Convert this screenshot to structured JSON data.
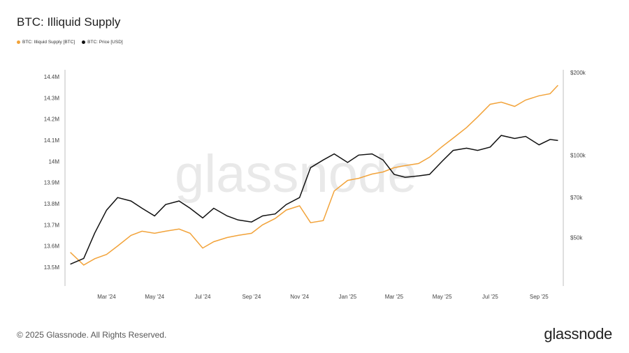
{
  "title": "BTC: Illiquid Supply",
  "legend": [
    {
      "label": "BTC: Illiquid Supply [BTC]",
      "color": "#f2a33a"
    },
    {
      "label": "BTC: Price [USD]",
      "color": "#111111"
    }
  ],
  "watermark": "glassnode",
  "footer": {
    "copyright": "© 2025 Glassnode. All Rights Reserved.",
    "logo": "glassnode"
  },
  "chart_data": {
    "type": "line",
    "x_axis": {
      "ticks": [
        "Mar '24",
        "May '24",
        "Jul '24",
        "Sep '24",
        "Nov '24",
        "Jan '25",
        "Mar '25",
        "May '25",
        "Jul '25",
        "Sep '25"
      ]
    },
    "y_left": {
      "ticks": [
        "13.5M",
        "13.6M",
        "13.7M",
        "13.8M",
        "13.9M",
        "14M",
        "14.1M",
        "14.2M",
        "14.3M",
        "14.4M"
      ],
      "range": [
        13.47,
        14.42
      ]
    },
    "y_right": {
      "ticks": [
        "$50k",
        "$70k",
        "$100k",
        "$200k"
      ],
      "scale": "log",
      "range": [
        37000,
        200000
      ]
    },
    "grid": false,
    "legend_position": "top-left",
    "series": [
      {
        "name": "BTC: Illiquid Supply [BTC]",
        "axis": "left",
        "color": "#f2a33a",
        "x": [
          "2024-01-15",
          "2024-02-01",
          "2024-02-15",
          "2024-03-01",
          "2024-03-15",
          "2024-04-01",
          "2024-04-15",
          "2024-05-01",
          "2024-05-15",
          "2024-06-01",
          "2024-06-15",
          "2024-07-01",
          "2024-07-15",
          "2024-08-01",
          "2024-08-15",
          "2024-09-01",
          "2024-09-15",
          "2024-10-01",
          "2024-10-15",
          "2024-11-01",
          "2024-11-15",
          "2024-12-01",
          "2024-12-15",
          "2025-01-01",
          "2025-01-15",
          "2025-02-01",
          "2025-02-15",
          "2025-03-01",
          "2025-03-15",
          "2025-04-01",
          "2025-04-15",
          "2025-05-01",
          "2025-05-15",
          "2025-06-01",
          "2025-06-15",
          "2025-07-01",
          "2025-07-15",
          "2025-08-01",
          "2025-08-15",
          "2025-09-01",
          "2025-09-15",
          "2025-09-25"
        ],
        "values": [
          13.57,
          13.51,
          13.54,
          13.56,
          13.6,
          13.65,
          13.67,
          13.66,
          13.67,
          13.68,
          13.66,
          13.59,
          13.62,
          13.64,
          13.65,
          13.66,
          13.7,
          13.73,
          13.77,
          13.79,
          13.71,
          13.72,
          13.86,
          13.91,
          13.92,
          13.94,
          13.95,
          13.97,
          13.98,
          13.99,
          14.02,
          14.07,
          14.11,
          14.16,
          14.21,
          14.27,
          14.28,
          14.26,
          14.29,
          14.31,
          14.32,
          14.36
        ]
      },
      {
        "name": "BTC: Price [USD]",
        "axis": "right",
        "color": "#111111",
        "x": [
          "2024-01-15",
          "2024-02-01",
          "2024-02-15",
          "2024-03-01",
          "2024-03-15",
          "2024-04-01",
          "2024-04-15",
          "2024-05-01",
          "2024-05-15",
          "2024-06-01",
          "2024-06-15",
          "2024-07-01",
          "2024-07-15",
          "2024-08-01",
          "2024-08-15",
          "2024-09-01",
          "2024-09-15",
          "2024-10-01",
          "2024-10-15",
          "2024-11-01",
          "2024-11-15",
          "2024-12-01",
          "2024-12-15",
          "2025-01-01",
          "2025-01-15",
          "2025-02-01",
          "2025-02-15",
          "2025-03-01",
          "2025-03-15",
          "2025-04-01",
          "2025-04-15",
          "2025-05-01",
          "2025-05-15",
          "2025-06-01",
          "2025-06-15",
          "2025-07-01",
          "2025-07-15",
          "2025-08-01",
          "2025-08-15",
          "2025-09-01",
          "2025-09-15",
          "2025-09-25"
        ],
        "values": [
          40000,
          42000,
          52000,
          63000,
          70000,
          68000,
          64000,
          60000,
          66000,
          68000,
          64000,
          59000,
          64000,
          60000,
          58000,
          57000,
          60000,
          61000,
          66000,
          70000,
          90000,
          96000,
          101000,
          94000,
          100000,
          101000,
          96000,
          85000,
          83000,
          84000,
          85000,
          95000,
          104000,
          106000,
          104000,
          107000,
          118000,
          115000,
          117000,
          109000,
          114000,
          113000
        ]
      }
    ]
  }
}
